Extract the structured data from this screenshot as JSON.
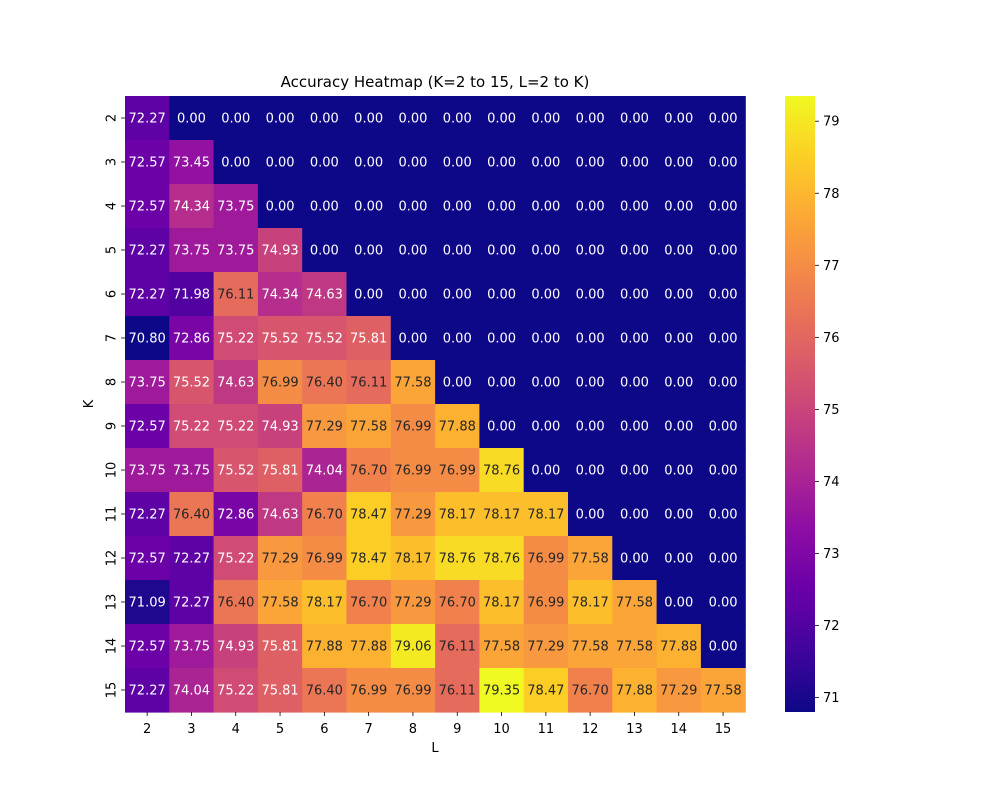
{
  "chart_data": {
    "type": "heatmap",
    "title": "Accuracy Heatmap (K=2 to 15, L=2 to K)",
    "xlabel": "L",
    "ylabel": "K",
    "x_categories": [
      "2",
      "3",
      "4",
      "5",
      "6",
      "7",
      "8",
      "9",
      "10",
      "11",
      "12",
      "13",
      "14",
      "15"
    ],
    "y_categories": [
      "2",
      "3",
      "4",
      "5",
      "6",
      "7",
      "8",
      "9",
      "10",
      "11",
      "12",
      "13",
      "14",
      "15"
    ],
    "values": [
      [
        72.27,
        0.0,
        0.0,
        0.0,
        0.0,
        0.0,
        0.0,
        0.0,
        0.0,
        0.0,
        0.0,
        0.0,
        0.0,
        0.0
      ],
      [
        72.57,
        73.45,
        0.0,
        0.0,
        0.0,
        0.0,
        0.0,
        0.0,
        0.0,
        0.0,
        0.0,
        0.0,
        0.0,
        0.0
      ],
      [
        72.57,
        74.34,
        73.75,
        0.0,
        0.0,
        0.0,
        0.0,
        0.0,
        0.0,
        0.0,
        0.0,
        0.0,
        0.0,
        0.0
      ],
      [
        72.27,
        73.75,
        73.75,
        74.93,
        0.0,
        0.0,
        0.0,
        0.0,
        0.0,
        0.0,
        0.0,
        0.0,
        0.0,
        0.0
      ],
      [
        72.27,
        71.98,
        76.11,
        74.34,
        74.63,
        0.0,
        0.0,
        0.0,
        0.0,
        0.0,
        0.0,
        0.0,
        0.0,
        0.0
      ],
      [
        70.8,
        72.86,
        75.22,
        75.52,
        75.52,
        75.81,
        0.0,
        0.0,
        0.0,
        0.0,
        0.0,
        0.0,
        0.0,
        0.0
      ],
      [
        73.75,
        75.52,
        74.63,
        76.99,
        76.4,
        76.11,
        77.58,
        0.0,
        0.0,
        0.0,
        0.0,
        0.0,
        0.0,
        0.0
      ],
      [
        72.57,
        75.22,
        75.22,
        74.93,
        77.29,
        77.58,
        76.99,
        77.88,
        0.0,
        0.0,
        0.0,
        0.0,
        0.0,
        0.0
      ],
      [
        73.75,
        73.75,
        75.52,
        75.81,
        74.04,
        76.7,
        76.99,
        76.99,
        78.76,
        0.0,
        0.0,
        0.0,
        0.0,
        0.0
      ],
      [
        72.27,
        76.4,
        72.86,
        74.63,
        76.7,
        78.47,
        77.29,
        78.17,
        78.17,
        78.17,
        0.0,
        0.0,
        0.0,
        0.0
      ],
      [
        72.57,
        72.27,
        75.22,
        77.29,
        76.99,
        78.47,
        78.17,
        78.76,
        78.76,
        76.99,
        77.58,
        0.0,
        0.0,
        0.0
      ],
      [
        71.09,
        72.27,
        76.4,
        77.58,
        78.17,
        76.7,
        77.29,
        76.7,
        78.17,
        76.99,
        78.17,
        77.58,
        0.0,
        0.0
      ],
      [
        72.57,
        73.75,
        74.93,
        75.81,
        77.88,
        77.88,
        79.06,
        76.11,
        77.58,
        77.29,
        77.58,
        77.58,
        77.88,
        0.0
      ],
      [
        72.27,
        74.04,
        75.22,
        75.81,
        76.4,
        76.99,
        76.99,
        76.11,
        79.35,
        78.47,
        76.7,
        77.88,
        77.29,
        77.58
      ]
    ],
    "colormap": "plasma",
    "color_range": [
      70.8,
      79.35
    ],
    "colorbar_ticks": [
      "71",
      "72",
      "73",
      "74",
      "75",
      "76",
      "77",
      "78",
      "79"
    ],
    "legend_placement": "right",
    "grid": false
  }
}
